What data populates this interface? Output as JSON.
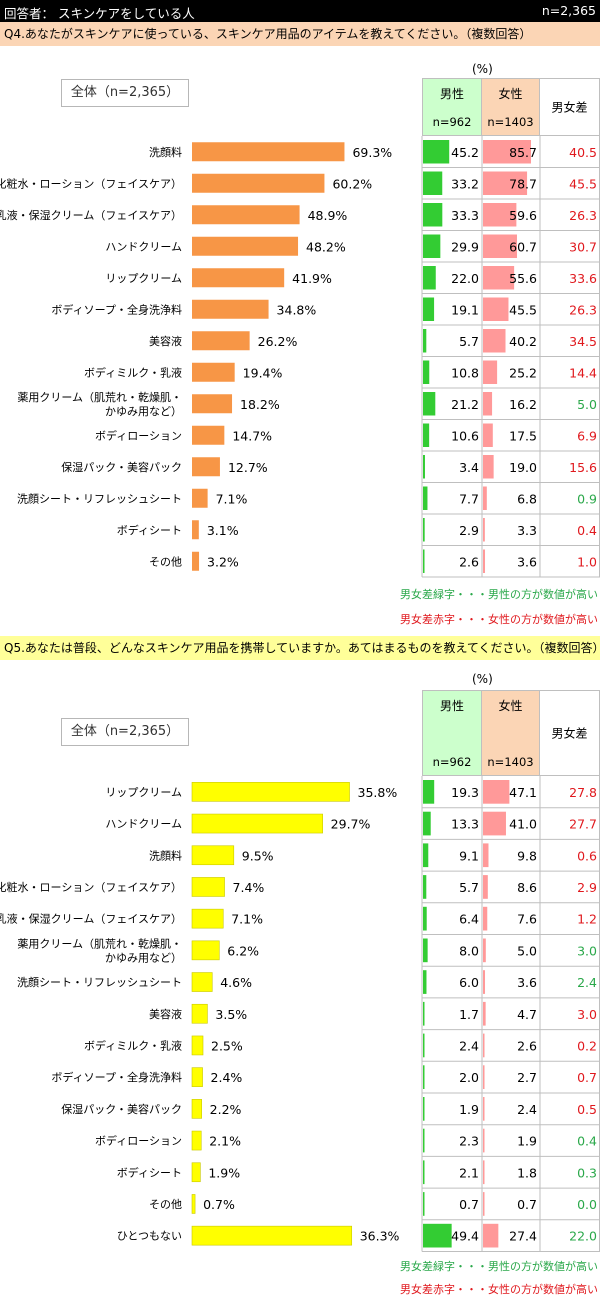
{
  "header": {
    "respondents": "回答者： スキンケアをしている人",
    "n": "n=2,365"
  },
  "unit": "(%)",
  "columns": {
    "male": "男性",
    "male_n": "n=962",
    "female": "女性",
    "female_n": "n=1403",
    "diff": "男女差"
  },
  "colors": {
    "q4_bar": "#f79646",
    "q5_bar": "#ffff00",
    "male_bar": "#33cc33",
    "female_bar": "#ff9999",
    "diff_green": "#2aa84a",
    "diff_red": "#e0191e"
  },
  "chart_data": [
    {
      "type": "bar",
      "title": "Q4.あなたがスキンケアに使っている、スキンケア用品のアイテムを教えてください。（複数回答）",
      "overall_label": "全体（n=2,365）",
      "categories": [
        "洗顔料",
        "化粧水・ローション（フェイスケア）",
        "乳液・保湿クリーム（フェイスケア）",
        "ハンドクリーム",
        "リップクリーム",
        "ボディソープ・全身洗浄料",
        "美容液",
        "ボディミルク・乳液",
        "薬用クリーム（肌荒れ・乾燥肌・\nかゆみ用など）",
        "ボディローション",
        "保湿パック・美容パック",
        "洗顔シート・リフレッシュシート",
        "ボディシート",
        "その他"
      ],
      "series": [
        {
          "name": "全体（n=2,365）",
          "values": [
            69.3,
            60.2,
            48.9,
            48.2,
            41.9,
            34.8,
            26.2,
            19.4,
            18.2,
            14.7,
            12.7,
            7.1,
            3.1,
            3.2
          ]
        },
        {
          "name": "男性",
          "values": [
            45.2,
            33.2,
            33.3,
            29.9,
            22.0,
            19.1,
            5.7,
            10.8,
            21.2,
            10.6,
            3.4,
            7.7,
            2.9,
            2.6
          ]
        },
        {
          "name": "女性",
          "values": [
            85.7,
            78.7,
            59.6,
            60.7,
            55.6,
            45.5,
            40.2,
            25.2,
            16.2,
            17.5,
            19.0,
            6.8,
            3.3,
            3.6
          ]
        },
        {
          "name": "男女差",
          "values": [
            40.5,
            45.5,
            26.3,
            30.7,
            33.6,
            26.3,
            34.5,
            14.4,
            5.0,
            6.9,
            15.6,
            0.9,
            0.4,
            1.0
          ],
          "higher": [
            "f",
            "f",
            "f",
            "f",
            "f",
            "f",
            "f",
            "f",
            "m",
            "f",
            "f",
            "m",
            "f",
            "f"
          ]
        }
      ]
    },
    {
      "type": "bar",
      "title": "Q5.あなたは普段、どんなスキンケア用品を携帯していますか。あてはまるものを教えてください。（複数回答）",
      "overall_label": "全体（n=2,365）",
      "categories": [
        "リップクリーム",
        "ハンドクリーム",
        "洗顔料",
        "化粧水・ローション（フェイスケア）",
        "乳液・保湿クリーム（フェイスケア）",
        "薬用クリーム（肌荒れ・乾燥肌・\nかゆみ用など）",
        "洗顔シート・リフレッシュシート",
        "美容液",
        "ボディミルク・乳液",
        "ボディソープ・全身洗浄料",
        "保湿パック・美容パック",
        "ボディローション",
        "ボディシート",
        "その他",
        "ひとつもない"
      ],
      "series": [
        {
          "name": "全体（n=2,365）",
          "values": [
            35.8,
            29.7,
            9.5,
            7.4,
            7.1,
            6.2,
            4.6,
            3.5,
            2.5,
            2.4,
            2.2,
            2.1,
            1.9,
            0.7,
            36.3
          ]
        },
        {
          "name": "男性",
          "values": [
            19.3,
            13.3,
            9.1,
            5.7,
            6.4,
            8.0,
            6.0,
            1.7,
            2.4,
            2.0,
            1.9,
            2.3,
            2.1,
            0.7,
            49.4
          ]
        },
        {
          "name": "女性",
          "values": [
            47.1,
            41.0,
            9.8,
            8.6,
            7.6,
            5.0,
            3.6,
            4.7,
            2.6,
            2.7,
            2.4,
            1.9,
            1.8,
            0.7,
            27.4
          ]
        },
        {
          "name": "男女差",
          "values": [
            27.8,
            27.7,
            0.6,
            2.9,
            1.2,
            3.0,
            2.4,
            3.0,
            0.2,
            0.7,
            0.5,
            0.4,
            0.3,
            0.0,
            22.0
          ],
          "higher": [
            "f",
            "f",
            "f",
            "f",
            "f",
            "m",
            "m",
            "f",
            "f",
            "f",
            "f",
            "m",
            "m",
            "m",
            "m"
          ]
        }
      ]
    }
  ],
  "legend": {
    "green": "男女差緑字・・・男性の方が数値が高い",
    "red": "男女差赤字・・・女性の方が数値が高い"
  }
}
